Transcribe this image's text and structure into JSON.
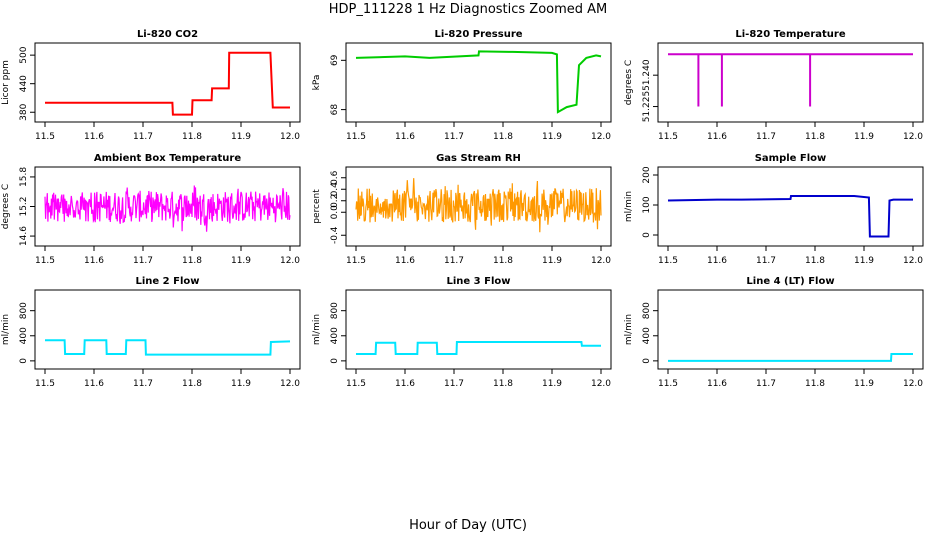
{
  "page": {
    "title": "HDP_111228  1 Hz Diagnostics Zoomed AM",
    "xlabel": "Hour of Day (UTC)"
  },
  "chart_data": [
    {
      "type": "line",
      "title": "Li-820 CO2",
      "ylabel": "Licor ppm",
      "color": "#ff0000",
      "xlim": [
        11.5,
        12.0
      ],
      "ylim": [
        370,
        515
      ],
      "xticks": [
        11.5,
        11.6,
        11.7,
        11.8,
        11.9,
        12.0
      ],
      "yticks": [
        380,
        440,
        500
      ],
      "series": [
        {
          "x": [
            11.5,
            11.76,
            11.761,
            11.8,
            11.801,
            11.84,
            11.841,
            11.875,
            11.876,
            11.96,
            11.965,
            12.0
          ],
          "values": [
            400,
            400,
            375,
            375,
            405,
            405,
            430,
            430,
            505,
            505,
            390,
            390
          ]
        }
      ]
    },
    {
      "type": "line",
      "title": "Li-820 Pressure",
      "ylabel": "kPa",
      "color": "#00cc00",
      "xlim": [
        11.5,
        12.0
      ],
      "ylim": [
        67.85,
        69.25
      ],
      "xticks": [
        11.5,
        11.6,
        11.7,
        11.8,
        11.9,
        12.0
      ],
      "yticks": [
        68.0,
        69.0
      ],
      "series": [
        {
          "x": [
            11.5,
            11.6,
            11.65,
            11.75,
            11.751,
            11.82,
            11.9,
            11.91,
            11.912,
            11.93,
            11.95,
            11.955,
            11.97,
            11.99,
            12.0
          ],
          "values": [
            69.05,
            69.08,
            69.05,
            69.1,
            69.18,
            69.17,
            69.15,
            69.12,
            67.95,
            68.05,
            68.1,
            68.9,
            69.05,
            69.1,
            69.08
          ]
        }
      ]
    },
    {
      "type": "line",
      "title": "Li-820 Temperature",
      "ylabel": "degrees C",
      "color": "#cc00cc",
      "xlim": [
        11.5,
        12.0
      ],
      "ylim": [
        51.22,
        51.253
      ],
      "xticks": [
        11.5,
        11.6,
        11.7,
        11.8,
        11.9,
        12.0
      ],
      "yticks": [
        51.225,
        51.24
      ],
      "series": [
        {
          "x": [
            11.5,
            11.562,
            11.562,
            11.562,
            11.61,
            11.61,
            11.61,
            11.79,
            11.79,
            11.79,
            12.0
          ],
          "values": [
            51.25,
            51.25,
            51.225,
            51.25,
            51.25,
            51.225,
            51.25,
            51.25,
            51.225,
            51.25,
            51.25
          ]
        }
      ]
    },
    {
      "type": "line",
      "title": "Ambient Box Temperature",
      "ylabel": "degrees C",
      "color": "#ff00ff",
      "noise": {
        "center": 15.2,
        "amp": 0.32
      },
      "xlim": [
        11.5,
        12.0
      ],
      "ylim": [
        14.5,
        15.9
      ],
      "xticks": [
        11.5,
        11.6,
        11.7,
        11.8,
        11.9,
        12.0
      ],
      "yticks": [
        14.6,
        15.2,
        15.8
      ]
    },
    {
      "type": "line",
      "title": "Gas Stream RH",
      "ylabel": "percent",
      "color": "#ff9900",
      "noise": {
        "center": 0.12,
        "amp": 0.3
      },
      "xlim": [
        11.5,
        12.0
      ],
      "ylim": [
        -0.5,
        0.7
      ],
      "xticks": [
        11.5,
        11.6,
        11.7,
        11.8,
        11.9,
        12.0
      ],
      "yticks": [
        -0.4,
        0.0,
        0.2,
        0.4,
        0.6
      ]
    },
    {
      "type": "line",
      "title": "Sample Flow",
      "ylabel": "ml/min",
      "color": "#0000cc",
      "xlim": [
        11.5,
        12.0
      ],
      "ylim": [
        -20,
        210
      ],
      "xticks": [
        11.5,
        11.6,
        11.7,
        11.8,
        11.9,
        12.0
      ],
      "yticks": [
        0,
        100,
        200
      ],
      "series": [
        {
          "x": [
            11.5,
            11.6,
            11.65,
            11.75,
            11.751,
            11.88,
            11.91,
            11.912,
            11.95,
            11.952,
            11.96,
            12.0
          ],
          "values": [
            115,
            118,
            118,
            120,
            130,
            130,
            125,
            -5,
            -5,
            115,
            118,
            118
          ]
        }
      ]
    },
    {
      "type": "line",
      "title": "Line 2 Flow",
      "ylabel": "ml/min",
      "color": "#00e5ff",
      "xlim": [
        11.5,
        12.0
      ],
      "ylim": [
        -50,
        1050
      ],
      "xticks": [
        11.5,
        11.6,
        11.7,
        11.8,
        11.9,
        12.0
      ],
      "yticks": [
        0,
        400,
        800
      ],
      "series": [
        {
          "x": [
            11.5,
            11.54,
            11.541,
            11.58,
            11.581,
            11.625,
            11.626,
            11.665,
            11.666,
            11.705,
            11.706,
            11.96,
            11.961,
            12.0
          ],
          "values": [
            330,
            330,
            110,
            110,
            330,
            330,
            110,
            110,
            330,
            330,
            100,
            100,
            300,
            310
          ]
        }
      ]
    },
    {
      "type": "line",
      "title": "Line 3 Flow",
      "ylabel": "ml/min",
      "color": "#00e5ff",
      "xlim": [
        11.5,
        12.0
      ],
      "ylim": [
        -50,
        1050
      ],
      "xticks": [
        11.5,
        11.6,
        11.7,
        11.8,
        11.9,
        12.0
      ],
      "yticks": [
        0,
        400,
        800
      ],
      "series": [
        {
          "x": [
            11.5,
            11.54,
            11.541,
            11.58,
            11.581,
            11.625,
            11.626,
            11.665,
            11.666,
            11.705,
            11.706,
            11.96,
            11.961,
            12.0
          ],
          "values": [
            110,
            110,
            290,
            290,
            110,
            110,
            290,
            290,
            110,
            110,
            300,
            300,
            240,
            240
          ]
        }
      ]
    },
    {
      "type": "line",
      "title": "Line 4 (LT) Flow",
      "ylabel": "ml/min",
      "color": "#00e5ff",
      "xlim": [
        11.5,
        12.0
      ],
      "ylim": [
        -50,
        1050
      ],
      "xticks": [
        11.5,
        11.6,
        11.7,
        11.8,
        11.9,
        12.0
      ],
      "yticks": [
        0,
        400,
        800
      ],
      "series": [
        {
          "x": [
            11.5,
            11.955,
            11.956,
            12.0
          ],
          "values": [
            0,
            0,
            110,
            110
          ]
        }
      ]
    }
  ]
}
